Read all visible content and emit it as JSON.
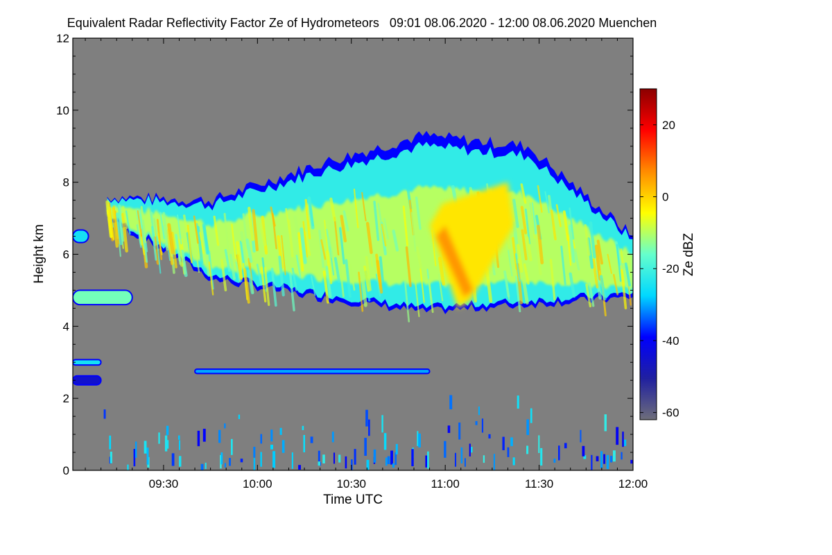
{
  "chart_data": {
    "type": "heatmap",
    "title": "Equivalent Radar Reflectivity Factor Ze of Hydrometeors   09:01 08.06.2020 - 12:00 08.06.2020 Muenchen",
    "xlabel": "Time UTC",
    "ylabel": "Height km",
    "x_unit": "minutes UTC",
    "xlim": [
      541,
      720
    ],
    "ylim": [
      0,
      12
    ],
    "x_ticks": [
      {
        "value": 570,
        "label": "09:30"
      },
      {
        "value": 600,
        "label": "10:00"
      },
      {
        "value": 630,
        "label": "10:30"
      },
      {
        "value": 660,
        "label": "11:00"
      },
      {
        "value": 690,
        "label": "11:30"
      },
      {
        "value": 720,
        "label": "12:00"
      }
    ],
    "y_ticks": [
      0,
      2,
      4,
      6,
      8,
      10,
      12
    ],
    "background_color": "#7f7f7f",
    "colorbar": {
      "label": "Ze dBZ",
      "range": [
        -62,
        30
      ],
      "ticks": [
        -60,
        -40,
        -20,
        0,
        20
      ],
      "colors": [
        "#6e6e7a",
        "#2020a0",
        "#0000ff",
        "#00d8ff",
        "#66ffcc",
        "#ffff00",
        "#ff8c00",
        "#ff0000",
        "#8b0000"
      ]
    },
    "features": [
      {
        "name": "main cloud layer",
        "start": "09:12",
        "end": "12:00",
        "base_km": [
          7.0,
          5.3,
          4.8,
          4.4,
          4.6,
          4.8
        ],
        "top_km": [
          7.6,
          7.5,
          8.5,
          9.3,
          9.0,
          6.5
        ],
        "ze_range_dbz": [
          -40,
          5
        ]
      },
      {
        "name": "fall streak core",
        "start": "10:55",
        "end": "11:20",
        "height_km": [
          4.4,
          8.0
        ],
        "ze_max_dbz": 10
      },
      {
        "name": "thin layer near 6.5 km",
        "start": "09:01",
        "end": "09:06",
        "height_km": 6.5,
        "ze_dbz": -25
      },
      {
        "name": "thin layer near 4.8 km",
        "start": "09:01",
        "end": "09:20",
        "height_km": 4.8,
        "ze_dbz": -15
      },
      {
        "name": "thin layer near 2.8 km",
        "start": "09:40",
        "end": "10:55",
        "height_km": 2.75,
        "ze_dbz": -30
      },
      {
        "name": "thin layer near 3.0 km",
        "start": "09:01",
        "end": "09:10",
        "height_km": 3.0,
        "ze_dbz": -25
      },
      {
        "name": "low echoes near 2.5 km",
        "start": "09:01",
        "end": "09:10",
        "height_km": 2.5,
        "ze_dbz": -45
      },
      {
        "name": "boundary layer echoes",
        "start": "09:10",
        "end": "12:00",
        "height_km": [
          0,
          2
        ],
        "ze_dbz": -35
      }
    ]
  }
}
